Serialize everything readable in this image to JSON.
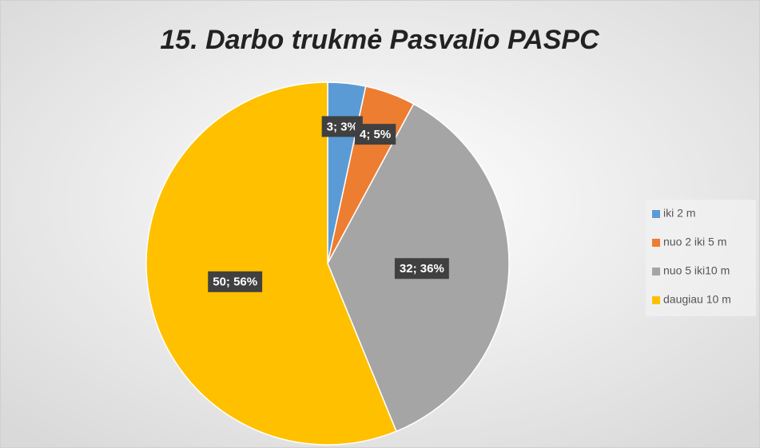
{
  "chart_data": {
    "type": "pie",
    "title": "15. Darbo trukmė Pasvalio PASPC",
    "categories": [
      "iki 2 m",
      "nuo 2 iki 5 m",
      "nuo 5 iki10 m",
      "daugiau 10 m"
    ],
    "values": [
      3,
      4,
      32,
      50
    ],
    "value_labels": [
      "3; 3%",
      "4; 5%",
      "32; 36%",
      "50; 56%"
    ],
    "colors": [
      "#5b9bd5",
      "#ed7d31",
      "#a5a5a5",
      "#ffc000"
    ],
    "legend": "right"
  }
}
